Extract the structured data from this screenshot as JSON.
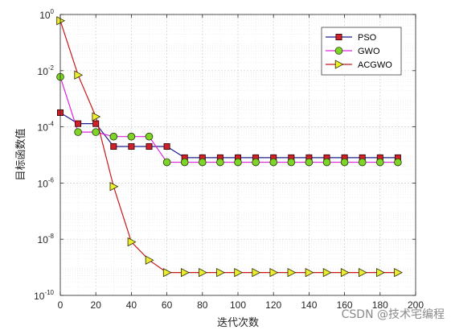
{
  "chart_data": {
    "type": "line",
    "xlabel": "迭代次数",
    "ylabel": "目标函数值",
    "x": [
      0,
      10,
      20,
      30,
      40,
      50,
      60,
      70,
      80,
      90,
      100,
      110,
      120,
      130,
      140,
      150,
      160,
      170,
      180,
      190
    ],
    "xlim": [
      0,
      200
    ],
    "xticks": [
      0,
      20,
      40,
      60,
      80,
      100,
      120,
      140,
      160,
      180,
      200
    ],
    "yscale": "log",
    "ylim": [
      1e-10,
      1
    ],
    "yticks": [
      {
        "base": "10",
        "exp": "0",
        "value": 1
      },
      {
        "base": "10",
        "exp": "-2",
        "value": 0.01
      },
      {
        "base": "10",
        "exp": "-4",
        "value": 0.0001
      },
      {
        "base": "10",
        "exp": "-6",
        "value": 1e-06
      },
      {
        "base": "10",
        "exp": "-8",
        "value": 1e-08
      },
      {
        "base": "10",
        "exp": "-10",
        "value": 1e-10
      }
    ],
    "grid": true,
    "minor_grid": true,
    "legend_position": "top-right",
    "series": [
      {
        "name": "PSO",
        "color": "#1f1f8f",
        "marker": "square",
        "marker_color": "#d0202a",
        "values": [
          0.00032,
          0.00013,
          0.00013,
          2e-05,
          2e-05,
          2e-05,
          2e-05,
          8e-06,
          8e-06,
          8e-06,
          8e-06,
          8e-06,
          8e-06,
          8e-06,
          8e-06,
          8e-06,
          8e-06,
          8e-06,
          8e-06,
          8e-06
        ]
      },
      {
        "name": "GWO",
        "color": "#e020e0",
        "marker": "circle",
        "marker_color": "#7fd42a",
        "values": [
          0.006,
          6.5e-05,
          6.5e-05,
          4.5e-05,
          4.5e-05,
          4.5e-05,
          5.5e-06,
          5.5e-06,
          5.5e-06,
          5.5e-06,
          5.5e-06,
          5.5e-06,
          5.5e-06,
          5.5e-06,
          5.5e-06,
          5.5e-06,
          5.5e-06,
          5.5e-06,
          5.5e-06,
          5.5e-06
        ]
      },
      {
        "name": "ACGWO",
        "color": "#c81818",
        "marker": "triangle-right",
        "marker_color": "#ecec30",
        "values": [
          0.6,
          0.007,
          0.00023,
          7.5e-07,
          8e-09,
          1.8e-09,
          6.5e-10,
          6.5e-10,
          6.5e-10,
          6.5e-10,
          6.5e-10,
          6.5e-10,
          6.5e-10,
          6.5e-10,
          6.5e-10,
          6.5e-10,
          6.5e-10,
          6.5e-10,
          6.5e-10,
          6.5e-10
        ]
      }
    ]
  },
  "watermark": "CSDN @技术宅编程"
}
